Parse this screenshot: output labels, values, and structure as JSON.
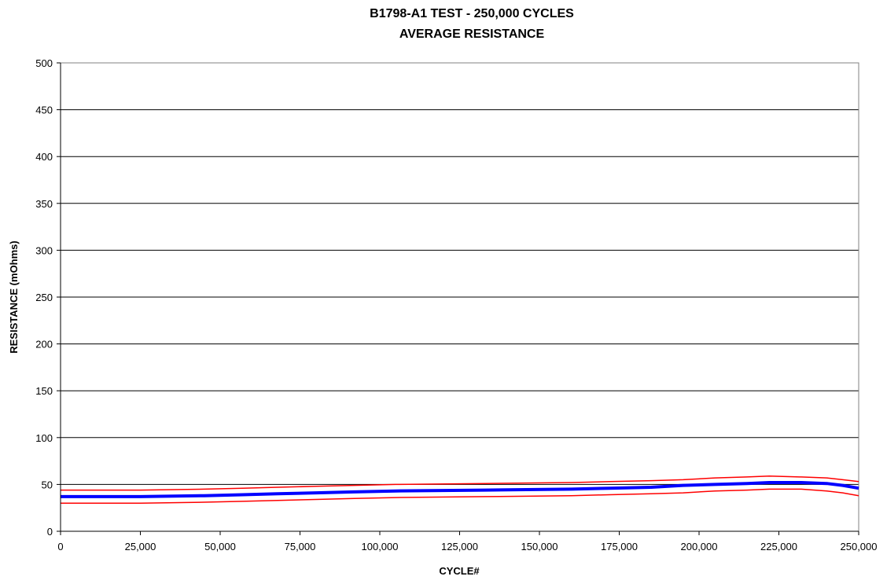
{
  "chart_data": {
    "type": "line",
    "title": "B1798-A1 TEST - 250,000 CYCLES",
    "subtitle": "AVERAGE RESISTANCE",
    "xlabel": "CYCLE#",
    "ylabel": "RESISTANCE (mOhms)",
    "xlim": [
      0,
      250000
    ],
    "ylim": [
      0,
      500
    ],
    "x_ticks": [
      0,
      25000,
      50000,
      75000,
      100000,
      125000,
      150000,
      175000,
      200000,
      225000,
      250000
    ],
    "x_tick_labels": [
      "0",
      "25,000",
      "50,000",
      "75,000",
      "100,000",
      "125,000",
      "150,000",
      "175,000",
      "200,000",
      "225,000",
      "250,000"
    ],
    "y_ticks": [
      0,
      50,
      100,
      150,
      200,
      250,
      300,
      350,
      400,
      450,
      500
    ],
    "y_tick_labels": [
      "0",
      "50",
      "100",
      "150",
      "200",
      "250",
      "300",
      "350",
      "400",
      "450",
      "500"
    ],
    "grid": "horizontal",
    "legend": "none",
    "series": [
      {
        "color": "#ff0000",
        "width": "thin",
        "x": [
          0,
          25000,
          45000,
          57000,
          68000,
          80000,
          92000,
          105000,
          133000,
          160000,
          172000,
          185000,
          195000,
          205000,
          215000,
          222000,
          232000,
          240000,
          245000,
          250000
        ],
        "y": [
          44,
          44,
          45,
          46,
          47,
          48,
          49,
          50,
          51,
          52,
          53,
          54,
          55,
          57,
          58,
          59,
          58,
          57,
          55,
          53
        ]
      },
      {
        "color": "#0000ff",
        "width": "thick",
        "x": [
          0,
          25000,
          45000,
          57000,
          68000,
          80000,
          92000,
          105000,
          133000,
          160000,
          172000,
          185000,
          195000,
          205000,
          215000,
          222000,
          232000,
          240000,
          245000,
          250000
        ],
        "y": [
          37,
          37,
          38,
          39,
          40,
          41,
          42,
          43,
          44,
          45,
          46,
          47,
          49,
          50,
          51,
          52,
          52,
          51,
          49,
          46
        ]
      },
      {
        "color": "#ff0000",
        "width": "thin",
        "x": [
          0,
          25000,
          45000,
          57000,
          68000,
          80000,
          92000,
          105000,
          133000,
          160000,
          172000,
          185000,
          195000,
          205000,
          215000,
          222000,
          232000,
          240000,
          245000,
          250000
        ],
        "y": [
          30,
          30,
          31,
          32,
          33,
          34,
          35,
          36,
          37,
          38,
          39,
          40,
          41,
          43,
          44,
          45,
          45,
          43,
          41,
          38
        ]
      }
    ]
  }
}
